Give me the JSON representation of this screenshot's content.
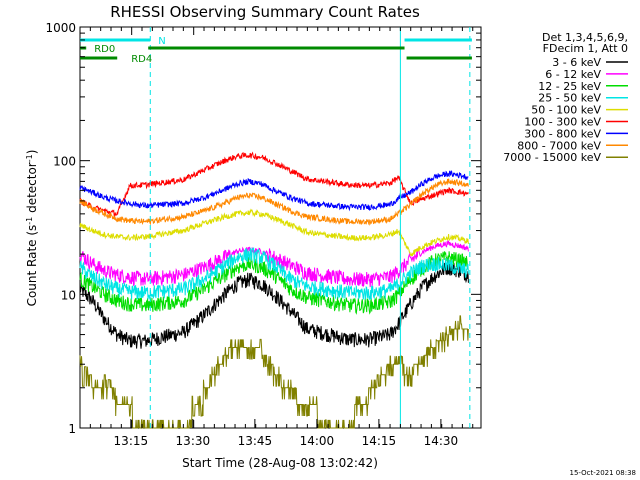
{
  "chart_data": {
    "type": "line",
    "title": "RHESSI Observing Summary Count Rates",
    "xlabel": "Start Time (28-Aug-08 13:02:42)",
    "ylabel_parts": [
      "Count Rate (s",
      "-1",
      " detector",
      "-1",
      ")"
    ],
    "y_scale": "log",
    "ylim": [
      1,
      1000
    ],
    "y_ticks": [
      {
        "value": 1,
        "label": "1"
      },
      {
        "value": 10,
        "label": "10"
      },
      {
        "value": 100,
        "label": "100"
      },
      {
        "value": 1000,
        "label": "1000"
      }
    ],
    "x_range_minutes": [
      0,
      97
    ],
    "x_ticks": [
      {
        "minute": 12.3,
        "label": "13:15"
      },
      {
        "minute": 27.3,
        "label": "13:30"
      },
      {
        "minute": 42.3,
        "label": "13:45"
      },
      {
        "minute": 57.3,
        "label": "14:00"
      },
      {
        "minute": 72.3,
        "label": "14:15"
      },
      {
        "minute": 87.3,
        "label": "14:30"
      }
    ],
    "vlines_minutes": [
      {
        "minute": 17,
        "color": "#00e5e5",
        "style": "dashed"
      },
      {
        "minute": 77.5,
        "color": "#00e5e5",
        "style": "solid"
      },
      {
        "minute": 94.3,
        "color": "#00e5e5",
        "style": "dashed"
      }
    ],
    "flag_bars": [
      {
        "label": "N",
        "color": "#00e5e5",
        "segments": [
          [
            0,
            17
          ],
          [
            78.5,
            94.8
          ]
        ]
      },
      {
        "label": "RD0",
        "color": "#008a00",
        "segments": [
          [
            0,
            1.5
          ],
          [
            16.5,
            78.5
          ]
        ]
      },
      {
        "label": "RD4",
        "color": "#008a00",
        "segments": [
          [
            0,
            9
          ],
          [
            79,
            94.8
          ]
        ]
      }
    ],
    "legend_header": [
      "Det 1,3,4,5,6,9,",
      "FDecim 1, Att 0"
    ],
    "series": [
      {
        "name": "3 - 6 keV",
        "color": "#000000",
        "x": [
          0,
          3,
          6,
          9,
          12,
          16,
          25,
          30,
          35,
          38,
          41,
          44,
          47,
          51,
          55,
          65,
          70,
          75,
          77,
          80,
          83,
          86,
          89,
          92,
          94
        ],
        "y": [
          11,
          9,
          6.5,
          5,
          4.5,
          4.5,
          5.2,
          7,
          10,
          12,
          13,
          12,
          10,
          7.5,
          5.5,
          4.6,
          4.6,
          5,
          6,
          8.5,
          11.5,
          14,
          16,
          15,
          14
        ]
      },
      {
        "name": "6 - 12 keV",
        "color": "#ff00ff",
        "x": [
          0,
          3,
          6,
          9,
          12,
          16,
          25,
          30,
          35,
          38,
          41,
          44,
          47,
          51,
          55,
          65,
          70,
          75,
          77,
          80,
          83,
          86,
          89,
          92,
          94
        ],
        "y": [
          20,
          17,
          15,
          14,
          13.5,
          13,
          14,
          16,
          19,
          21,
          21.5,
          21,
          19,
          16.5,
          14.5,
          13,
          13,
          13.5,
          15,
          18,
          21,
          23,
          24,
          23,
          22
        ]
      },
      {
        "name": "12 - 25 keV",
        "color": "#00dd00",
        "x": [
          0,
          3,
          6,
          9,
          12,
          16,
          25,
          30,
          35,
          38,
          41,
          44,
          47,
          51,
          55,
          65,
          70,
          75,
          77,
          80,
          83,
          86,
          89,
          92,
          94
        ],
        "y": [
          13,
          11.5,
          10,
          9,
          8.5,
          8.3,
          9,
          11,
          14,
          16,
          17,
          16,
          14,
          11,
          9.5,
          8.3,
          8.3,
          8.8,
          10,
          13,
          16,
          18,
          19,
          18,
          17
        ]
      },
      {
        "name": "25 - 50 keV",
        "color": "#00e5e5",
        "x": [
          0,
          3,
          6,
          9,
          12,
          16,
          25,
          30,
          35,
          38,
          41,
          44,
          47,
          51,
          55,
          65,
          70,
          75,
          77,
          80,
          83,
          86,
          89,
          92,
          94
        ],
        "y": [
          16,
          13.5,
          12,
          11,
          10.5,
          10.3,
          11,
          13,
          16.5,
          19,
          20,
          19,
          16.5,
          13,
          11.5,
          10.3,
          10.3,
          10.8,
          12,
          14.5,
          16.5,
          17,
          16.5,
          15.5,
          15
        ]
      },
      {
        "name": "50 - 100 keV",
        "color": "#dddd00",
        "x": [
          0,
          3,
          6,
          9,
          12,
          16,
          25,
          30,
          35,
          38,
          41,
          44,
          47,
          51,
          55,
          65,
          70,
          75,
          77,
          80,
          83,
          86,
          89,
          92,
          94
        ],
        "y": [
          33,
          30,
          28,
          27,
          26.5,
          27,
          30,
          34,
          38,
          40,
          41,
          40,
          37,
          33,
          29,
          26.5,
          26.5,
          28,
          30,
          20,
          23,
          25,
          27,
          26,
          25
        ]
      },
      {
        "name": "100 - 300 keV",
        "color": "#ff0000",
        "x": [
          0,
          3,
          6,
          9,
          12,
          16,
          25,
          30,
          35,
          38,
          41,
          44,
          47,
          51,
          55,
          65,
          70,
          75,
          77,
          80,
          83,
          86,
          89,
          92,
          94
        ],
        "y": [
          50,
          45,
          42,
          40,
          65,
          66,
          72,
          85,
          100,
          108,
          110,
          106,
          97,
          84,
          73,
          66,
          65,
          68,
          75,
          48,
          52,
          56,
          60,
          58,
          56
        ]
      },
      {
        "name": "300 - 800 keV",
        "color": "#0000ff",
        "x": [
          0,
          3,
          6,
          9,
          12,
          16,
          25,
          30,
          35,
          38,
          41,
          44,
          47,
          51,
          55,
          65,
          70,
          75,
          77,
          80,
          83,
          86,
          89,
          92,
          94
        ],
        "y": [
          63,
          58,
          53,
          50,
          48,
          46,
          48,
          53,
          61,
          67,
          70,
          67,
          60,
          53,
          48,
          45,
          45,
          47,
          52,
          58,
          68,
          76,
          80,
          78,
          75
        ]
      },
      {
        "name": "800 - 7000 keV",
        "color": "#ff8800",
        "x": [
          0,
          3,
          6,
          9,
          12,
          16,
          25,
          30,
          35,
          38,
          41,
          44,
          47,
          51,
          55,
          65,
          70,
          75,
          77,
          80,
          83,
          86,
          89,
          92,
          94
        ],
        "y": [
          50,
          44,
          40,
          37,
          35.5,
          35,
          38,
          42,
          48,
          53,
          55,
          53,
          48,
          42,
          38,
          35,
          35,
          36.5,
          40,
          47,
          57,
          65,
          70,
          68,
          65
        ]
      },
      {
        "name": "7000 - 15000 keV",
        "color": "#808000",
        "x": [
          0,
          1,
          2,
          4,
          6,
          10,
          16,
          22,
          28,
          32,
          36,
          44,
          46,
          48,
          50,
          54,
          58,
          62,
          66,
          70,
          72,
          74,
          76,
          77.5,
          79,
          81,
          84,
          86,
          88,
          90,
          92,
          94
        ],
        "y": [
          3.5,
          2.3,
          2.6,
          1.8,
          2.3,
          1.5,
          1,
          1,
          1.3,
          2.5,
          3.8,
          3.8,
          3,
          2.4,
          2,
          1.6,
          1.2,
          1,
          1.2,
          1.8,
          2.3,
          2.7,
          3.1,
          3.2,
          2.5,
          2.8,
          3.5,
          4.2,
          4.6,
          5.3,
          5.8,
          5.5
        ]
      }
    ],
    "timestamp": "15-Oct-2021 08:38"
  }
}
